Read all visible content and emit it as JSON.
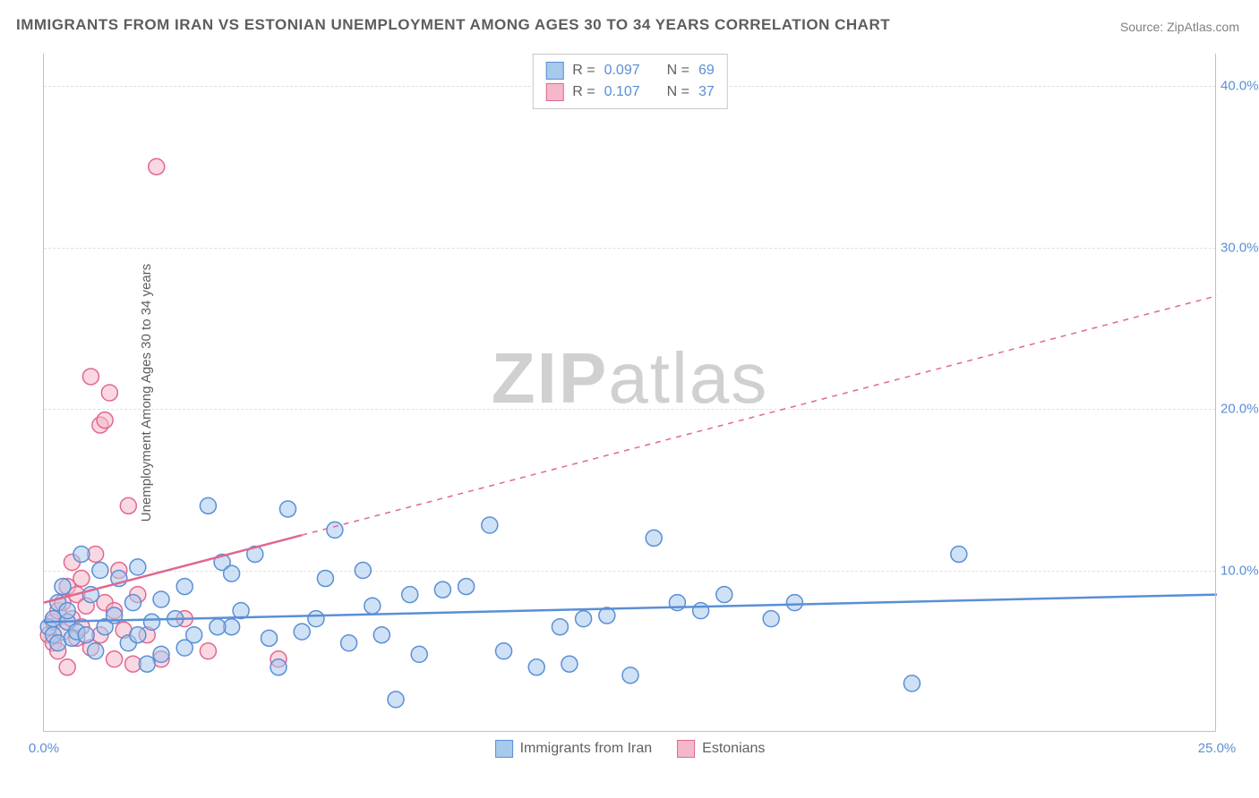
{
  "title": "IMMIGRANTS FROM IRAN VS ESTONIAN UNEMPLOYMENT AMONG AGES 30 TO 34 YEARS CORRELATION CHART",
  "source": "Source: ZipAtlas.com",
  "watermark_bold": "ZIP",
  "watermark_light": "atlas",
  "ylabel": "Unemployment Among Ages 30 to 34 years",
  "chart": {
    "type": "scatter",
    "xlim": [
      0,
      25
    ],
    "ylim": [
      0,
      42
    ],
    "xtick_labels": [
      "0.0%",
      "25.0%"
    ],
    "ytick_values": [
      10,
      20,
      30,
      40
    ],
    "ytick_labels": [
      "10.0%",
      "20.0%",
      "30.0%",
      "40.0%"
    ],
    "background_color": "#ffffff",
    "grid_color": "#e0e0e0",
    "axis_color": "#c0c0c0",
    "marker_radius": 9,
    "marker_stroke_width": 1.5,
    "trend_line_width": 2.5,
    "trend_dash_pattern": "6,6",
    "series": [
      {
        "name": "Immigrants from Iran",
        "fill_color": "#a7c9ec",
        "stroke_color": "#5a8fd6",
        "fill_opacity": 0.55,
        "r_value": "0.097",
        "n_value": "69",
        "trend": {
          "x1": 0,
          "y1": 6.8,
          "x2": 25,
          "y2": 8.5,
          "dash_from_x": null
        },
        "points": [
          [
            0.1,
            6.5
          ],
          [
            0.2,
            6.0
          ],
          [
            0.2,
            7.0
          ],
          [
            0.3,
            8.0
          ],
          [
            0.3,
            5.5
          ],
          [
            0.4,
            9.0
          ],
          [
            0.5,
            6.8
          ],
          [
            0.5,
            7.5
          ],
          [
            0.6,
            5.8
          ],
          [
            0.7,
            6.2
          ],
          [
            0.8,
            11.0
          ],
          [
            0.9,
            6.0
          ],
          [
            1.0,
            8.5
          ],
          [
            1.1,
            5.0
          ],
          [
            1.2,
            10.0
          ],
          [
            1.3,
            6.5
          ],
          [
            1.5,
            7.2
          ],
          [
            1.6,
            9.5
          ],
          [
            1.8,
            5.5
          ],
          [
            1.9,
            8.0
          ],
          [
            2.0,
            6.0
          ],
          [
            2.0,
            10.2
          ],
          [
            2.2,
            4.2
          ],
          [
            2.3,
            6.8
          ],
          [
            2.5,
            8.2
          ],
          [
            2.5,
            4.8
          ],
          [
            2.8,
            7.0
          ],
          [
            3.0,
            9.0
          ],
          [
            3.0,
            5.2
          ],
          [
            3.2,
            6.0
          ],
          [
            3.5,
            14.0
          ],
          [
            3.8,
            10.5
          ],
          [
            4.0,
            9.8
          ],
          [
            4.0,
            6.5
          ],
          [
            4.2,
            7.5
          ],
          [
            4.5,
            11.0
          ],
          [
            4.8,
            5.8
          ],
          [
            5.0,
            4.0
          ],
          [
            5.2,
            13.8
          ],
          [
            5.5,
            6.2
          ],
          [
            5.8,
            7.0
          ],
          [
            6.0,
            9.5
          ],
          [
            6.2,
            12.5
          ],
          [
            6.5,
            5.5
          ],
          [
            7.0,
            7.8
          ],
          [
            7.2,
            6.0
          ],
          [
            7.5,
            2.0
          ],
          [
            7.8,
            8.5
          ],
          [
            8.0,
            4.8
          ],
          [
            8.5,
            8.8
          ],
          [
            9.5,
            12.8
          ],
          [
            9.0,
            9.0
          ],
          [
            9.8,
            5.0
          ],
          [
            10.5,
            4.0
          ],
          [
            11.0,
            6.5
          ],
          [
            11.2,
            4.2
          ],
          [
            12.0,
            7.2
          ],
          [
            13.0,
            12.0
          ],
          [
            13.5,
            8.0
          ],
          [
            14.0,
            7.5
          ],
          [
            14.5,
            8.5
          ],
          [
            15.5,
            7.0
          ],
          [
            16.0,
            8.0
          ],
          [
            18.5,
            3.0
          ],
          [
            19.5,
            11.0
          ],
          [
            11.5,
            7.0
          ],
          [
            12.5,
            3.5
          ],
          [
            3.7,
            6.5
          ],
          [
            6.8,
            10.0
          ]
        ]
      },
      {
        "name": "Estonians",
        "fill_color": "#f5b8c8",
        "stroke_color": "#e06890",
        "fill_opacity": 0.55,
        "r_value": "0.107",
        "n_value": "37",
        "trend": {
          "x1": 0,
          "y1": 8.0,
          "x2": 25,
          "y2": 27.0,
          "dash_from_x": 5.5
        },
        "points": [
          [
            0.1,
            6.0
          ],
          [
            0.2,
            5.5
          ],
          [
            0.2,
            6.8
          ],
          [
            0.3,
            7.5
          ],
          [
            0.3,
            5.0
          ],
          [
            0.4,
            8.0
          ],
          [
            0.4,
            6.2
          ],
          [
            0.5,
            9.0
          ],
          [
            0.5,
            4.0
          ],
          [
            0.6,
            7.0
          ],
          [
            0.6,
            10.5
          ],
          [
            0.7,
            5.8
          ],
          [
            0.7,
            8.5
          ],
          [
            0.8,
            6.5
          ],
          [
            0.8,
            9.5
          ],
          [
            0.9,
            7.8
          ],
          [
            1.0,
            22.0
          ],
          [
            1.0,
            5.2
          ],
          [
            1.1,
            11.0
          ],
          [
            1.2,
            19.0
          ],
          [
            1.2,
            6.0
          ],
          [
            1.3,
            19.3
          ],
          [
            1.3,
            8.0
          ],
          [
            1.4,
            21.0
          ],
          [
            1.5,
            4.5
          ],
          [
            1.5,
            7.5
          ],
          [
            1.6,
            10.0
          ],
          [
            1.7,
            6.3
          ],
          [
            1.8,
            14.0
          ],
          [
            1.9,
            4.2
          ],
          [
            2.0,
            8.5
          ],
          [
            2.2,
            6.0
          ],
          [
            2.4,
            35.0
          ],
          [
            2.5,
            4.5
          ],
          [
            3.0,
            7.0
          ],
          [
            3.5,
            5.0
          ],
          [
            5.0,
            4.5
          ]
        ]
      }
    ]
  },
  "stats_legend": {
    "r_label": "R =",
    "n_label": "N ="
  },
  "bottom_legend": [
    {
      "label": "Immigrants from Iran",
      "fill": "#a7c9ec",
      "stroke": "#5a8fd6"
    },
    {
      "label": "Estonians",
      "fill": "#f5b8c8",
      "stroke": "#e06890"
    }
  ],
  "colors": {
    "title_color": "#5d5d5d",
    "source_color": "#808080",
    "tick_label_color": "#5a8fd6",
    "legend_text_color": "#606060",
    "legend_border_color": "#c8c8c8",
    "watermark_color": "#d0d0d0"
  },
  "fonts": {
    "title_fontsize": 17,
    "source_fontsize": 14,
    "tick_fontsize": 15,
    "legend_fontsize": 16,
    "ylabel_fontsize": 15,
    "watermark_fontsize": 80
  }
}
